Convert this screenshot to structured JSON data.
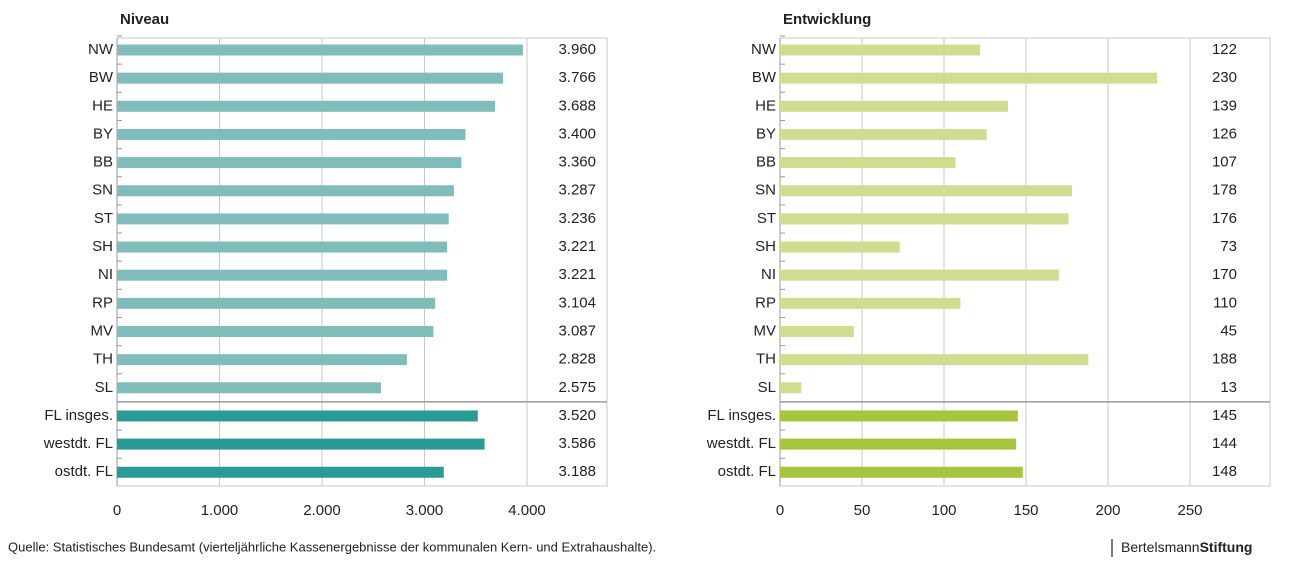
{
  "chart_data": [
    {
      "type": "bar",
      "orientation": "horizontal",
      "title": "Niveau",
      "categories": [
        "NW",
        "BW",
        "HE",
        "BY",
        "BB",
        "SN",
        "ST",
        "SH",
        "NI",
        "RP",
        "MV",
        "TH",
        "SL",
        "FL insges.",
        "westdt. FL",
        "ostdt. FL"
      ],
      "values": [
        3960,
        3766,
        3688,
        3400,
        3360,
        3287,
        3236,
        3221,
        3221,
        3104,
        3087,
        2828,
        2575,
        3520,
        3586,
        3188
      ],
      "value_labels": [
        "3.960",
        "3.766",
        "3.688",
        "3.400",
        "3.360",
        "3.287",
        "3.236",
        "3.221",
        "3.221",
        "3.104",
        "3.087",
        "2.828",
        "2.575",
        "3.520",
        "3.586",
        "3.188"
      ],
      "colors": [
        "#80bdba",
        "#80bdba",
        "#80bdba",
        "#80bdba",
        "#80bdba",
        "#80bdba",
        "#80bdba",
        "#80bdba",
        "#80bdba",
        "#80bdba",
        "#80bdba",
        "#80bdba",
        "#80bdba",
        "#2a9a94",
        "#2a9a94",
        "#2a9a94"
      ],
      "xlim": [
        0,
        4000
      ],
      "xticks": [
        0,
        {
          "value": 1000,
          "label": "1.000"
        },
        {
          "value": 2000,
          "label": "2.000"
        },
        {
          "value": 3000,
          "label": "3.000"
        },
        {
          "value": 4000,
          "label": "4.000"
        }
      ],
      "grid": true
    },
    {
      "type": "bar",
      "orientation": "horizontal",
      "title": "Entwicklung",
      "categories": [
        "NW",
        "BW",
        "HE",
        "BY",
        "BB",
        "SN",
        "ST",
        "SH",
        "NI",
        "RP",
        "MV",
        "TH",
        "SL",
        "FL insges.",
        "westdt. FL",
        "ostdt. FL"
      ],
      "values": [
        122,
        230,
        139,
        126,
        107,
        178,
        176,
        73,
        170,
        110,
        45,
        188,
        13,
        145,
        144,
        148
      ],
      "colors": [
        "#cfdd91",
        "#cfdd91",
        "#cfdd91",
        "#cfdd91",
        "#cfdd91",
        "#cfdd91",
        "#cfdd91",
        "#cfdd91",
        "#cfdd91",
        "#cfdd91",
        "#cfdd91",
        "#cfdd91",
        "#cfdd91",
        "#a6c43c",
        "#a6c43c",
        "#a6c43c"
      ],
      "xlim": [
        0,
        250
      ],
      "xticks": [
        0,
        50,
        100,
        150,
        200,
        250
      ],
      "grid": true
    }
  ],
  "source": "Quelle: Statistisches Bundesamt (vierteljährliche Kassenergebnisse der kommunalen Kern- und Extrahaushalte).",
  "brand": {
    "light": "Bertelsmann",
    "bold": "Stiftung"
  }
}
